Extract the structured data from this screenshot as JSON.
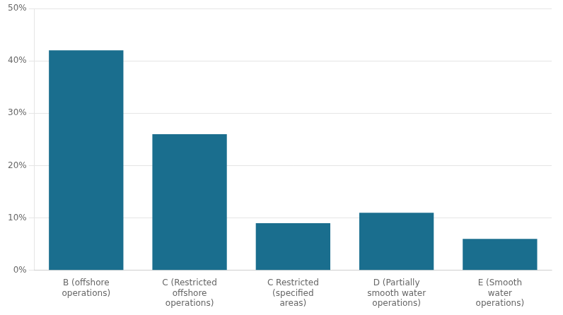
{
  "chart_data": {
    "type": "bar",
    "categories": [
      "B (offshore\noperations)",
      "C (Restricted\noffshore\noperations)",
      "C Restricted\n(specified\nareas)",
      "D (Partially\nsmooth water\noperations)",
      "E (Smooth\nwater\noperations)"
    ],
    "values": [
      0.42,
      0.26,
      0.09,
      0.11,
      0.06
    ],
    "color": "#1a6e8e",
    "ylim": [
      0,
      0.5
    ],
    "yticks": [
      {
        "value": 0.0,
        "label": "0%"
      },
      {
        "value": 0.1,
        "label": "10%"
      },
      {
        "value": 0.2,
        "label": "20%"
      },
      {
        "value": 0.3,
        "label": "30%"
      },
      {
        "value": 0.4,
        "label": "40%"
      },
      {
        "value": 0.5,
        "label": "50%"
      }
    ],
    "grid": true
  }
}
